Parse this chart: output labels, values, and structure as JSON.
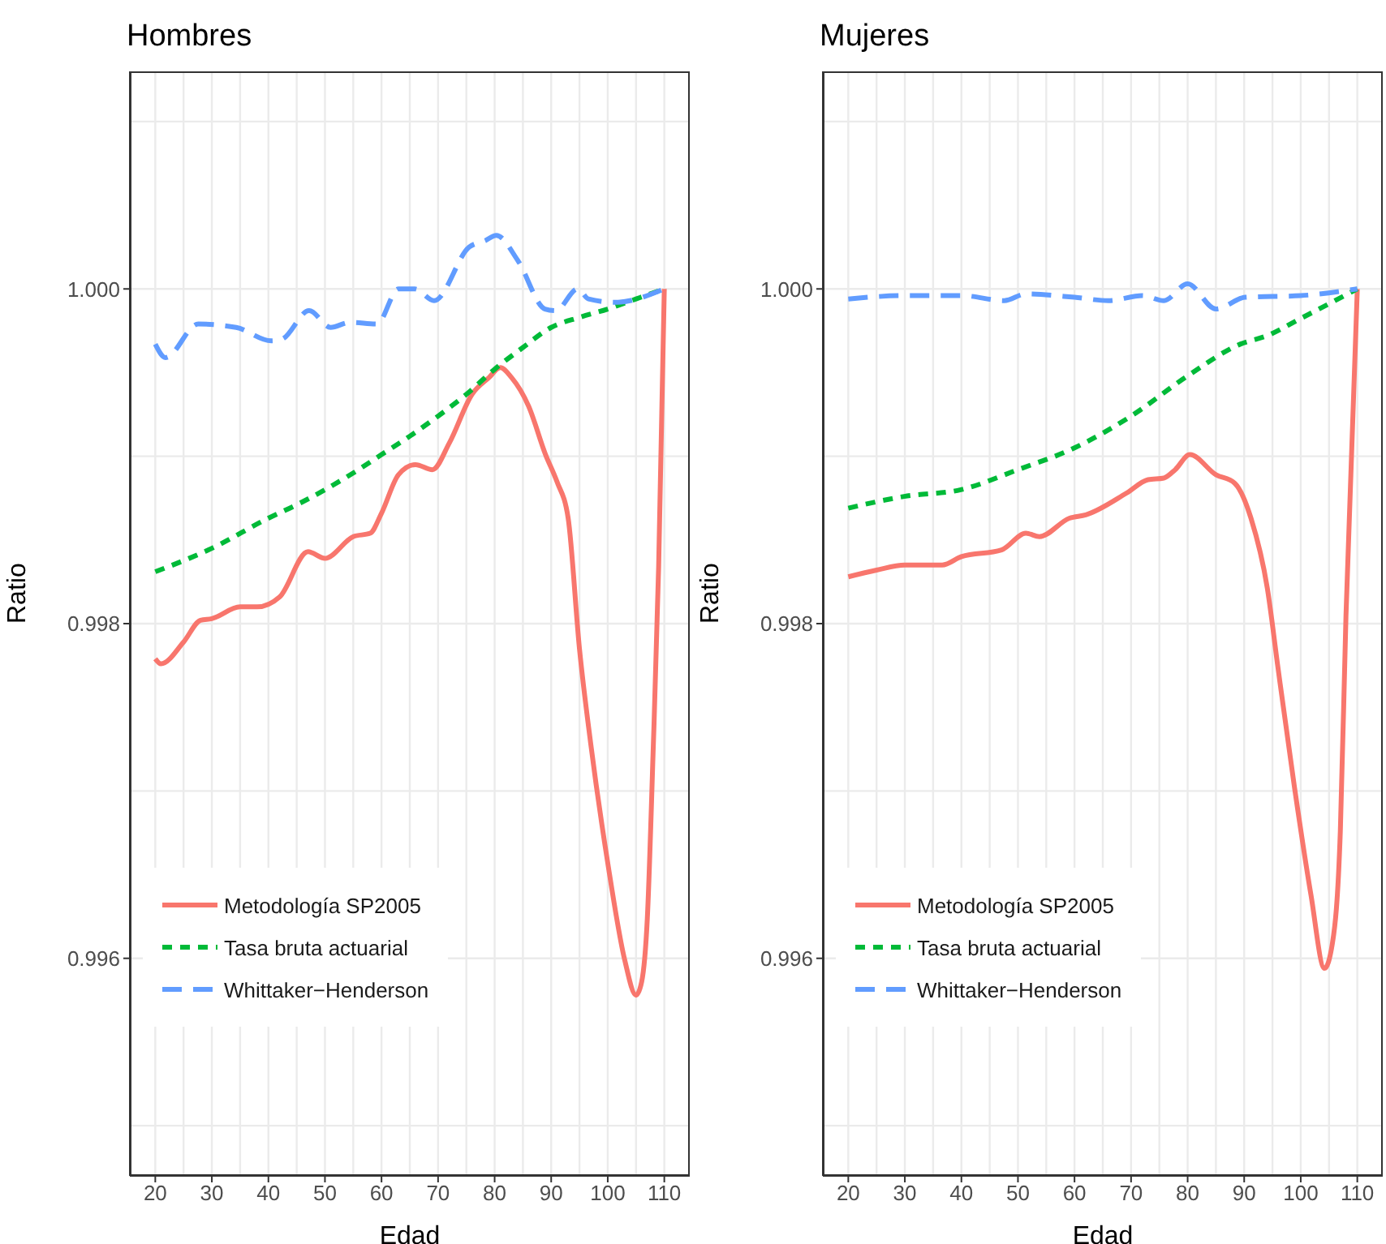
{
  "chart_data": [
    {
      "type": "line",
      "title": "Hombres",
      "xlabel": "Edad",
      "ylabel": "Ratio",
      "xlim": [
        15.5,
        114.5
      ],
      "xticks": [
        20,
        30,
        40,
        50,
        60,
        70,
        80,
        90,
        100,
        110
      ],
      "ylim": [
        0.9947,
        1.0013
      ],
      "yticks": [
        {
          "value": 0.996,
          "label": "0.996"
        },
        {
          "value": 0.998,
          "label": "0.998"
        },
        {
          "value": 1,
          "label": "1.000"
        }
      ],
      "grid": true,
      "legend": "bottom left",
      "series": [
        {
          "name": "Metodología SP2005",
          "color": "#f8766d",
          "line_style": "solid",
          "x": [
            20,
            21,
            25,
            28,
            30,
            35,
            38,
            42,
            47,
            50,
            55,
            58,
            60,
            63,
            66,
            69,
            72,
            76,
            79,
            81,
            83,
            86,
            89,
            91,
            93,
            95,
            97,
            100,
            103,
            105,
            106,
            107,
            108,
            109,
            110
          ],
          "values": [
            0.99779,
            0.99776,
            0.99789,
            0.99802,
            0.99803,
            0.9981,
            0.9981,
            0.99816,
            0.99843,
            0.99839,
            0.99852,
            0.99854,
            0.99866,
            0.99889,
            0.99895,
            0.99892,
            0.99908,
            0.99937,
            0.99947,
            0.99953,
            0.99947,
            0.9993,
            0.99901,
            0.99885,
            0.99863,
            0.99785,
            0.99728,
            0.99657,
            0.99599,
            0.99578,
            0.99586,
            0.99624,
            0.99721,
            0.99834,
            1.0
          ]
        },
        {
          "name": "Tasa bruta actuarial",
          "color": "#00ba38",
          "line_style": "dotted",
          "x": [
            20,
            30,
            40,
            45,
            50,
            55,
            60,
            65,
            70,
            75,
            80,
            85,
            90,
            95,
            100,
            105,
            110
          ],
          "values": [
            0.99831,
            0.99845,
            0.99863,
            0.99871,
            0.9988,
            0.9989,
            0.99901,
            0.99912,
            0.99924,
            0.99937,
            0.99952,
            0.99965,
            0.99977,
            0.99983,
            0.99988,
            0.99994,
            1.0
          ]
        },
        {
          "name": "Whittaker−Henderson",
          "color": "#619cff",
          "line_style": "dashed",
          "x": [
            20,
            21.8,
            27.6,
            34.3,
            40.5,
            42.4,
            47.2,
            51,
            54.4,
            59.2,
            63,
            65.9,
            69.3,
            75.5,
            78.4,
            80.3,
            84.1,
            88.9,
            90.8,
            94.7,
            96.6,
            101.4,
            110
          ],
          "values": [
            0.99967,
            0.99959,
            0.99979,
            0.99977,
            0.99969,
            0.9997,
            0.99987,
            0.99977,
            0.9998,
            0.99979,
            1.0,
            1.0,
            0.99993,
            1.00025,
            1.00029,
            1.00032,
            1.00017,
            0.99988,
            0.99987,
            1.0,
            0.99994,
            0.99992,
            1.0
          ]
        }
      ]
    },
    {
      "type": "line",
      "title": "Mujeres",
      "xlabel": "Edad",
      "ylabel": "Ratio",
      "xlim": [
        15.5,
        114.5
      ],
      "xticks": [
        20,
        30,
        40,
        50,
        60,
        70,
        80,
        90,
        100,
        110
      ],
      "ylim": [
        0.9947,
        1.0013
      ],
      "yticks": [
        {
          "value": 0.996,
          "label": "0.996"
        },
        {
          "value": 0.998,
          "label": "0.998"
        },
        {
          "value": 1,
          "label": "1.000"
        }
      ],
      "grid": true,
      "legend": "bottom left",
      "series": [
        {
          "name": "Metodología SP2005",
          "color": "#f8766d",
          "line_style": "solid",
          "x": [
            20,
            25,
            30,
            36.6,
            40,
            47.1,
            51.4,
            53.8,
            59.1,
            62,
            69.2,
            73,
            75.8,
            77.8,
            80.4,
            85,
            88.3,
            91.2,
            94.1,
            96,
            98.9,
            101.8,
            104.2,
            105.6,
            107,
            108,
            110
          ],
          "values": [
            0.99828,
            0.99832,
            0.99835,
            0.99835,
            0.9984,
            0.99844,
            0.99854,
            0.99852,
            0.99863,
            0.99865,
            0.99878,
            0.99886,
            0.99887,
            0.99892,
            0.99901,
            0.99889,
            0.99884,
            0.99863,
            0.99821,
            0.99773,
            0.99702,
            0.99638,
            0.99594,
            0.99609,
            0.99676,
            0.99805,
            1.0
          ]
        },
        {
          "name": "Tasa bruta actuarial",
          "color": "#00ba38",
          "line_style": "dotted",
          "x": [
            20,
            29.9,
            39.9,
            50,
            60,
            70,
            80,
            89.3,
            94,
            99.8,
            110
          ],
          "values": [
            0.99869,
            0.99876,
            0.9988,
            0.99892,
            0.99905,
            0.99924,
            0.99948,
            0.99967,
            0.99972,
            0.99982,
            1.0
          ]
        },
        {
          "name": "Whittaker−Henderson",
          "color": "#619cff",
          "line_style": "dashed",
          "x": [
            20,
            30,
            40,
            47.6,
            51.4,
            60,
            66,
            72,
            75.8,
            80,
            85,
            90.2,
            100,
            110
          ],
          "values": [
            0.99994,
            0.99996,
            0.99996,
            0.99993,
            0.99997,
            0.99995,
            0.99993,
            0.99996,
            0.99993,
            1.00003,
            0.99988,
            0.99995,
            0.99996,
            1.0
          ]
        }
      ]
    }
  ]
}
